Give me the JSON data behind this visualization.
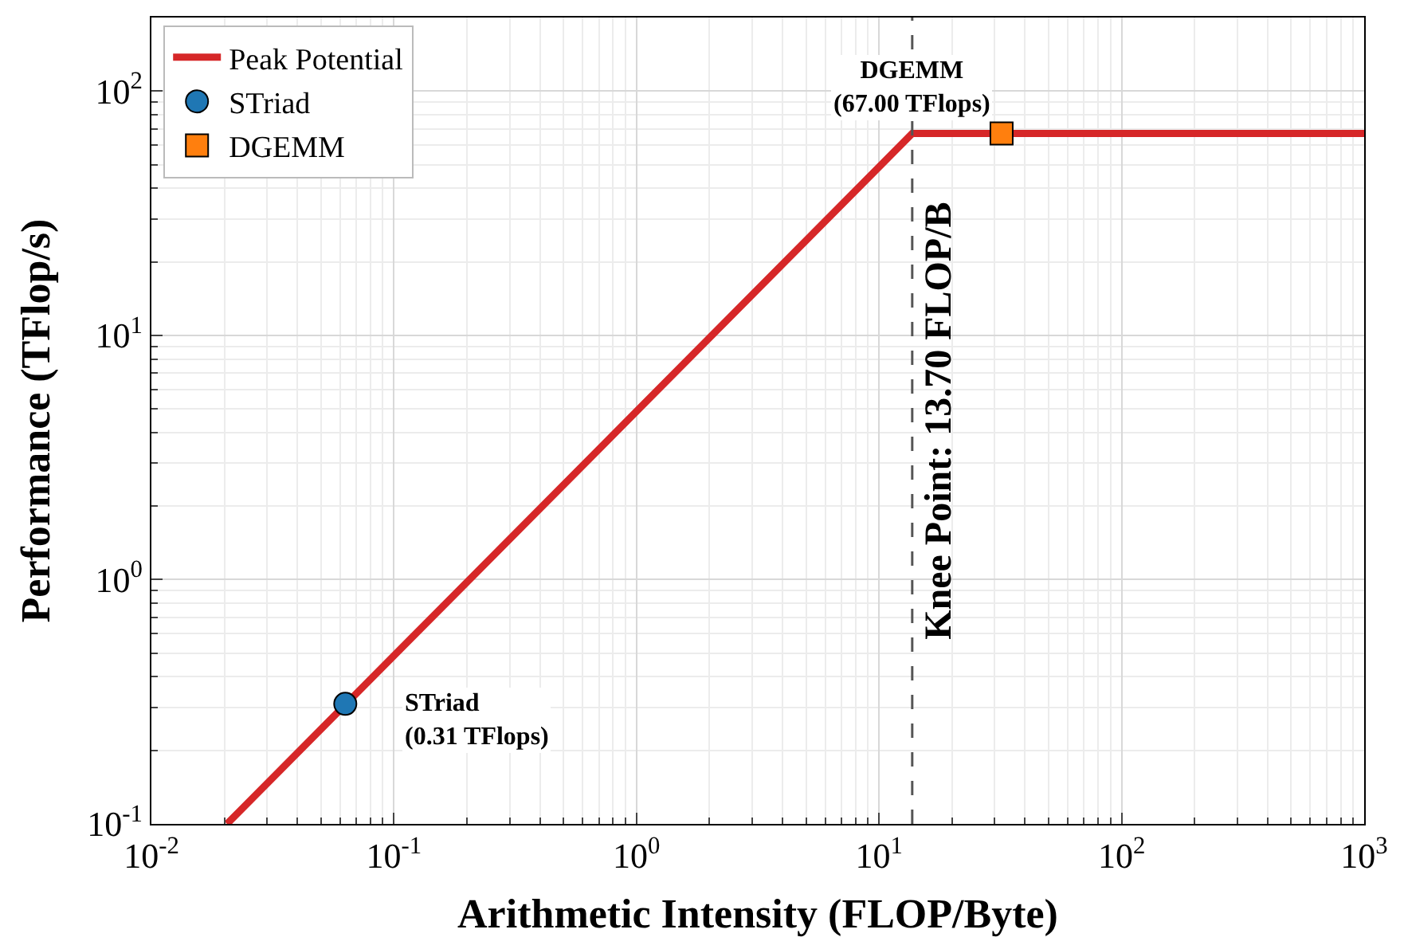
{
  "chart_data": {
    "type": "line",
    "xlabel": "Arithmetic Intensity (FLOP/Byte)",
    "ylabel": "Performance (TFlop/s)",
    "log": "xy",
    "grid": true,
    "legend": "top left",
    "xlim": [
      0.01,
      1000
    ],
    "ylim": [
      0.1,
      200
    ],
    "xticks": [
      {
        "value": 0.01,
        "label": "10$^{-2}$"
      },
      {
        "value": 0.1,
        "label": "10$^{-1}$"
      },
      {
        "value": 1,
        "label": "10$^{0}$"
      },
      {
        "value": 10,
        "label": "10$^{1}$"
      },
      {
        "value": 100,
        "label": "10$^{2}$"
      },
      {
        "value": 1000,
        "label": "10$^{3}$"
      }
    ],
    "yticks": [
      {
        "value": 0.1,
        "label": "10$^{-1}$"
      },
      {
        "value": 1,
        "label": "10$^{0}$"
      },
      {
        "value": 10,
        "label": "10$^{1}$"
      },
      {
        "value": 100,
        "label": "10$^{2}$"
      }
    ],
    "series": [
      {
        "name": "Peak Potential",
        "color": "#d62728",
        "x": [
          0.0205,
          13.7,
          1000
        ],
        "values": [
          0.1,
          67,
          67
        ]
      },
      {
        "name": "STriad",
        "type": "scatter",
        "marker": "circle",
        "color": "#1f77b4",
        "x": [
          0.063
        ],
        "values": [
          0.31
        ]
      },
      {
        "name": "DGEMM",
        "type": "scatter",
        "marker": "square",
        "color": "#ff7f0e",
        "x": [
          32
        ],
        "values": [
          67
        ]
      }
    ],
    "ref_lines": [
      {
        "axis": "x",
        "value": 13.7,
        "label": "Knee Point: 13.70 FLOP/B",
        "color": "#555555",
        "line_style": "dashed"
      }
    ],
    "annotations": [
      {
        "text": "STriad\n(0.31 TFlops)",
        "x": 0.063,
        "y": 0.31
      },
      {
        "text": "DGEMM\n(67.00 TFlops)",
        "x": 13.7,
        "y": 67
      }
    ]
  }
}
